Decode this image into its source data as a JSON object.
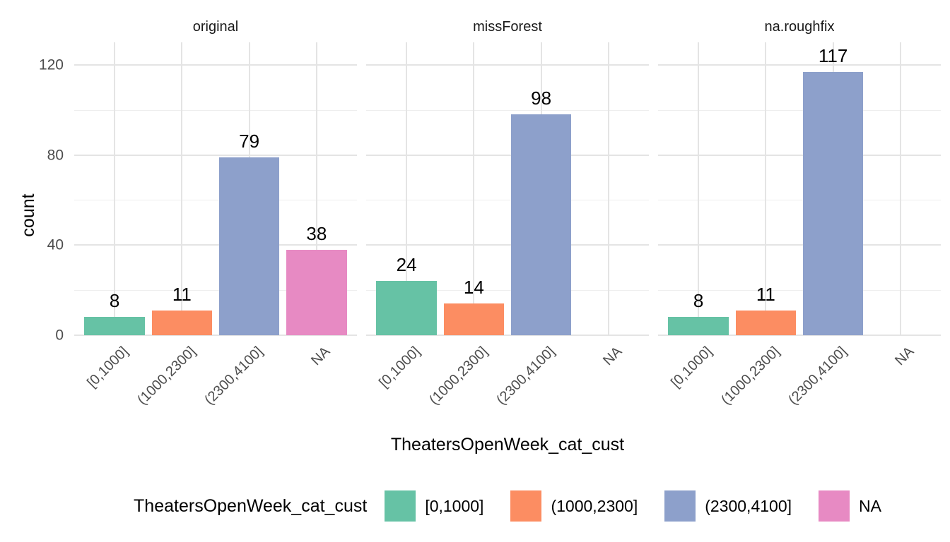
{
  "chart_data": {
    "type": "bar",
    "faceted": true,
    "facets": [
      {
        "title": "original",
        "values": [
          8,
          11,
          79,
          38
        ]
      },
      {
        "title": "missForest",
        "values": [
          24,
          14,
          98,
          null
        ]
      },
      {
        "title": "na.roughfix",
        "values": [
          8,
          11,
          117,
          null
        ]
      }
    ],
    "categories": [
      "[0,1000]",
      "(1000,2300]",
      "(2300,4100]",
      "NA"
    ],
    "bar_colors": [
      "#66C2A5",
      "#FC8D62",
      "#8DA0CB",
      "#E78AC3"
    ],
    "bar_value_labels_shown": true,
    "title": "",
    "xlabel": "TheatersOpenWeek_cat_cust",
    "ylabel": "count",
    "ylim": [
      0,
      130
    ],
    "yticks": [
      0,
      40,
      80,
      120
    ],
    "yminor": [
      20,
      60,
      100
    ],
    "grid": true,
    "legend_position": "bottom"
  },
  "legend": {
    "title": "TheatersOpenWeek_cat_cust",
    "items": [
      {
        "label": "[0,1000]",
        "color": "#66C2A5"
      },
      {
        "label": "(1000,2300]",
        "color": "#FC8D62"
      },
      {
        "label": "(2300,4100]",
        "color": "#8DA0CB"
      },
      {
        "label": "NA",
        "color": "#E78AC3"
      }
    ]
  },
  "colors": {
    "background": "#ffffff",
    "grid_major": "#e4e4e4",
    "grid_minor": "#eeeeee",
    "axis_text": "#4d4d4d",
    "strip_text": "#1a1a1a",
    "label_text": "#000000"
  }
}
